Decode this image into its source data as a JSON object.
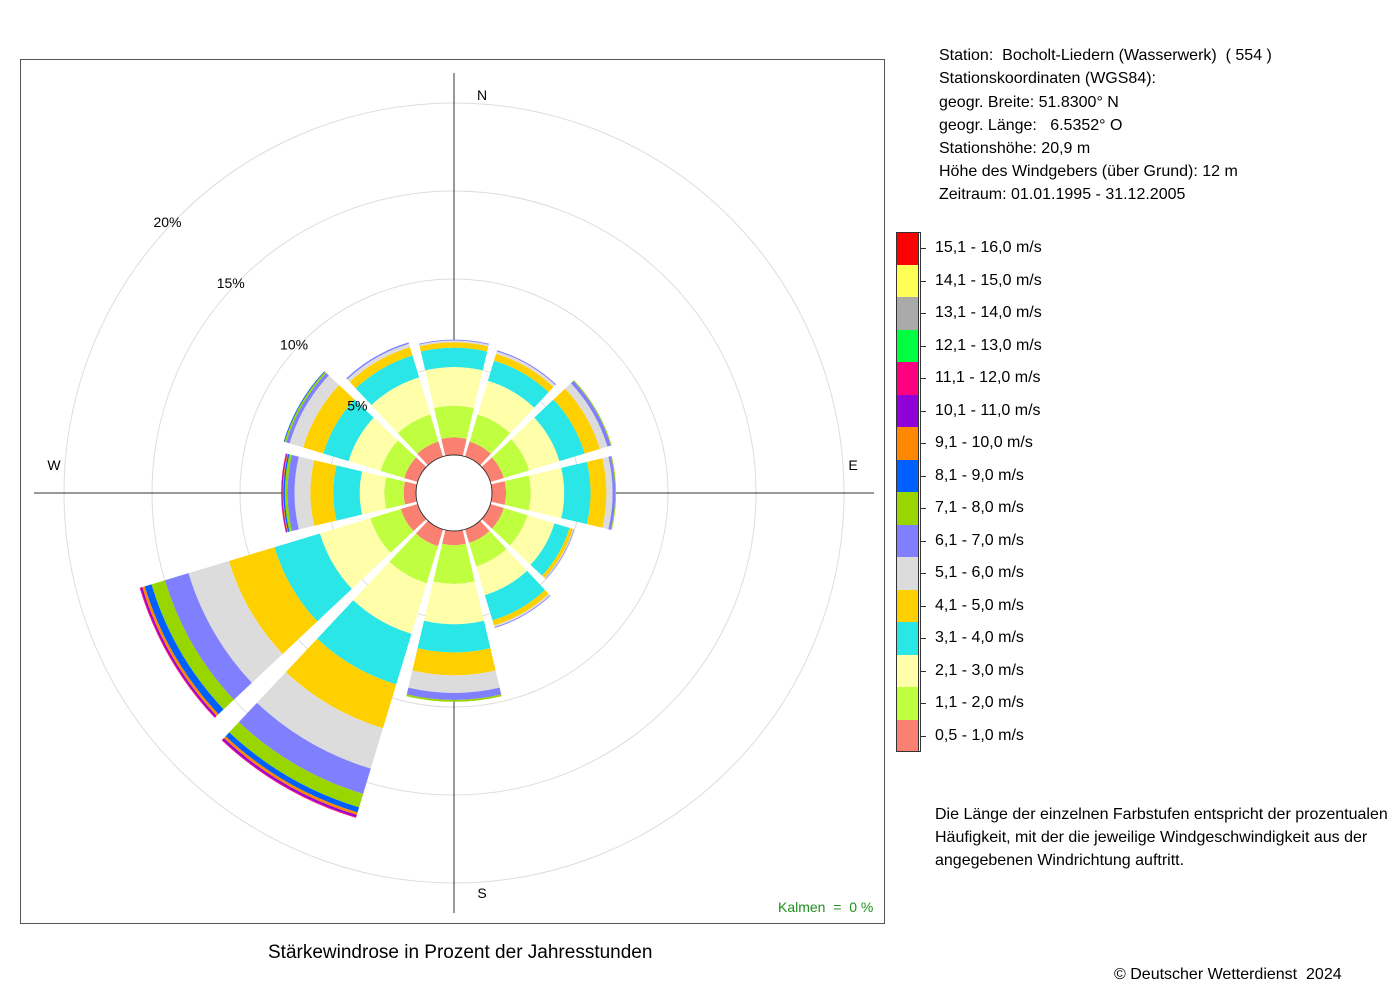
{
  "info": {
    "station": "Station:  Bocholt-Liedern (Wasserwerk)  ( 554 )",
    "coords_title": "Stationskoordinaten (WGS84):",
    "lat": "geogr. Breite: 51.8300° N",
    "lon": "geogr. Länge:   6.5352° O",
    "height": "Stationshöhe: 20,9 m",
    "sensor_height": "Höhe des Windgebers (über Grund): 12 m",
    "period": "Zeitraum: 01.01.1995 - 31.12.2005"
  },
  "note": "Die Länge der einzelnen Farbstufen entspricht der prozentualen Häufigkeit, mit der die jeweilige Windgeschwindigkeit aus der angegebenen Windrichtung auftritt.",
  "copyright": "© Deutscher Wetterdienst  2024",
  "chart_data": {
    "type": "wind-rose",
    "title": "Stärkewindrose in Prozent der Jahresstunden",
    "calm_label": "Kalmen  =  0 %",
    "direction_labels": [
      "N",
      "E",
      "S",
      "W"
    ],
    "directions": [
      "N",
      "NNE",
      "ENE",
      "E",
      "ESE",
      "SSE",
      "S",
      "SSW",
      "WSW",
      "W",
      "WNW",
      "NNW"
    ],
    "ring_labels": [
      "5%",
      "10%",
      "15%",
      "20%"
    ],
    "ring_values": [
      5,
      10,
      15,
      20
    ],
    "speed_classes": [
      {
        "label": "0,5 - 1,0 m/s",
        "color": "#fa8072"
      },
      {
        "label": "1,1 - 2,0 m/s",
        "color": "#bfff3f"
      },
      {
        "label": "2,1 - 3,0 m/s",
        "color": "#ffffaa"
      },
      {
        "label": "3,1 - 4,0 m/s",
        "color": "#2ae6e6"
      },
      {
        "label": "4,1 - 5,0 m/s",
        "color": "#ffd000"
      },
      {
        "label": "5,1 - 6,0 m/s",
        "color": "#dcdcdc"
      },
      {
        "label": "6,1 - 7,0 m/s",
        "color": "#8080ff"
      },
      {
        "label": "7,1 - 8,0 m/s",
        "color": "#99d600"
      },
      {
        "label": "8,1 - 9,0 m/s",
        "color": "#0060ff"
      },
      {
        "label": "9,1 - 10,0 m/s",
        "color": "#ff8800"
      },
      {
        "label": "10,1 - 11,0 m/s",
        "color": "#9000d8"
      },
      {
        "label": "11,1 - 12,0 m/s",
        "color": "#ff0080"
      },
      {
        "label": "12,1 - 13,0 m/s",
        "color": "#00ff40"
      },
      {
        "label": "13,1 - 14,0 m/s",
        "color": "#aaaaaa"
      },
      {
        "label": "14,1 - 15,0 m/s",
        "color": "#ffff55"
      },
      {
        "label": "15,1 - 16,0 m/s",
        "color": "#ff0000"
      }
    ],
    "sector_values": [
      [
        1.0,
        1.8,
        2.2,
        1.1,
        0.3,
        0.1,
        0.05
      ],
      [
        0.9,
        1.6,
        2.0,
        1.2,
        0.4,
        0.15,
        0.06
      ],
      [
        0.8,
        1.5,
        1.8,
        1.5,
        0.9,
        0.45,
        0.2,
        0.05
      ],
      [
        0.8,
        1.4,
        1.9,
        1.5,
        0.9,
        0.35,
        0.15,
        0.05
      ],
      [
        0.8,
        1.4,
        1.6,
        0.9,
        0.2,
        0.05,
        0.03
      ],
      [
        0.8,
        1.4,
        1.7,
        1.5,
        0.3,
        0.1,
        0.05
      ],
      [
        0.8,
        2.2,
        2.3,
        1.6,
        1.3,
        1.0,
        0.4,
        0.1
      ],
      [
        1.0,
        2.2,
        3.0,
        3.0,
        2.6,
        2.4,
        1.5,
        0.8,
        0.3,
        0.15,
        0.12,
        0.05
      ],
      [
        1.0,
        1.8,
        3.0,
        2.7,
        2.7,
        2.4,
        1.4,
        0.8,
        0.4,
        0.15,
        0.1,
        0.05
      ],
      [
        0.7,
        1.1,
        1.4,
        1.5,
        1.3,
        0.9,
        0.4,
        0.15,
        0.08,
        0.05,
        0.05,
        0.03
      ],
      [
        0.8,
        1.4,
        1.9,
        1.5,
        1.2,
        0.8,
        0.2,
        0.1,
        0.05
      ],
      [
        0.9,
        1.6,
        2.2,
        1.3,
        0.5,
        0.2,
        0.08
      ]
    ]
  }
}
